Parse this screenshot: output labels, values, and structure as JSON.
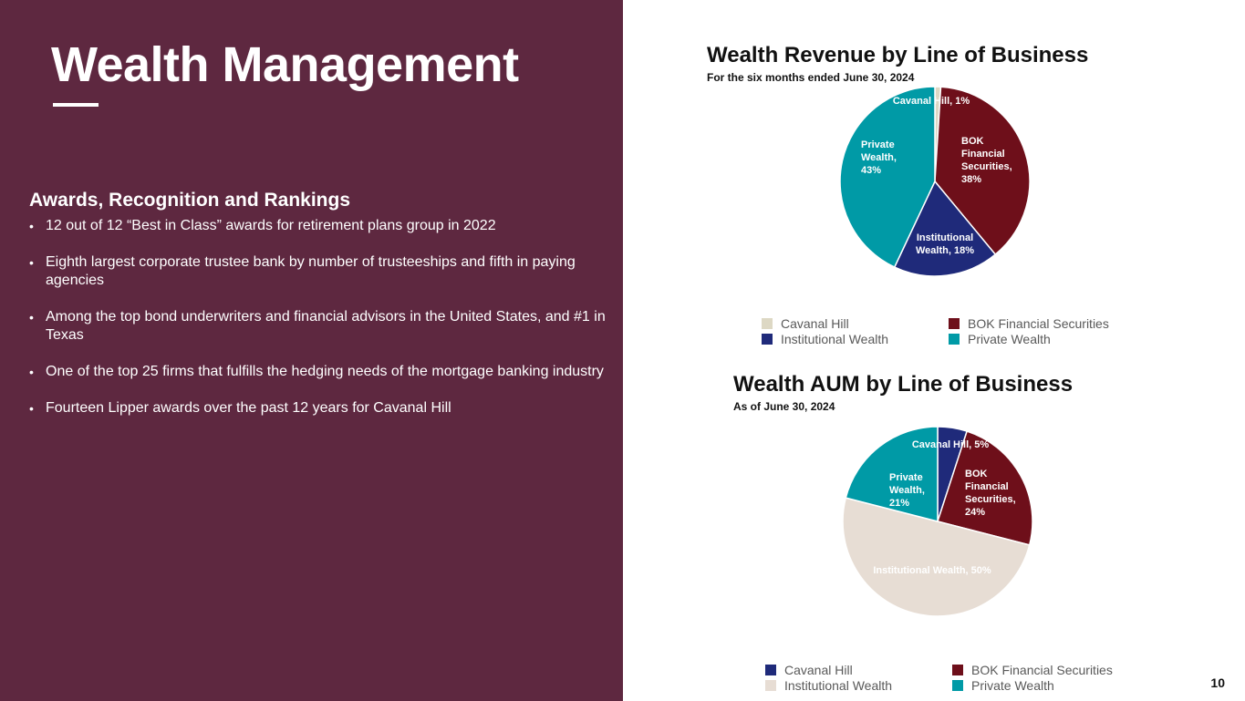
{
  "slide": {
    "title": "Wealth Management",
    "page_number": "10",
    "awards_heading": "Awards, Recognition and Rankings",
    "awards": [
      "12 out of 12 “Best in Class” awards for retirement plans group in 2022",
      "Eighth largest corporate trustee bank by number of trusteeships and fifth in paying agencies",
      "Among the top bond underwriters and financial advisors in the United States, and #1 in Texas",
      "One of the top 25 firms that fulfills the hedging needs of the mortgage banking industry",
      "Fourteen Lipper awards over the past 12 years for Cavanal Hill"
    ]
  },
  "colors": {
    "panel": "#5e2840",
    "cavanal_revenue": "#ddd8c4",
    "bok_financial": "#6e0f1a",
    "institutional_revenue": "#1f2a7a",
    "private_wealth": "#009aa6",
    "cavanal_aum": "#1f2a7a",
    "institutional_aum": "#e7ddd4"
  },
  "chart_data": [
    {
      "type": "pie",
      "title": "Wealth Revenue by Line of Business",
      "subtitle": "For the six months ended June 30, 2024",
      "slices": [
        {
          "name": "Cavanal Hill",
          "value": 1,
          "label": "Cavanal Hill, 1%",
          "color": "#ddd8c4"
        },
        {
          "name": "BOK Financial Securities",
          "value": 38,
          "label": "BOK Financial Securities, 38%",
          "color": "#6e0f1a"
        },
        {
          "name": "Institutional Wealth",
          "value": 18,
          "label": "Institutional Wealth, 18%",
          "color": "#1f2a7a"
        },
        {
          "name": "Private Wealth",
          "value": 43,
          "label": "Private Wealth, 43%",
          "color": "#009aa6"
        }
      ],
      "legend": [
        "Cavanal Hill",
        "BOK Financial Securities",
        "Institutional Wealth",
        "Private Wealth"
      ],
      "legend_position": "bottom"
    },
    {
      "type": "pie",
      "title": "Wealth AUM by Line of Business",
      "subtitle": "As of June 30, 2024",
      "slices": [
        {
          "name": "Cavanal Hill",
          "value": 5,
          "label": "Cavanal Hill, 5%",
          "color": "#1f2a7a"
        },
        {
          "name": "BOK Financial Securities",
          "value": 24,
          "label": "BOK Financial Securities, 24%",
          "color": "#6e0f1a"
        },
        {
          "name": "Institutional Wealth",
          "value": 50,
          "label": "Institutional Wealth, 50%",
          "color": "#e7ddd4"
        },
        {
          "name": "Private Wealth",
          "value": 21,
          "label": "Private Wealth, 21%",
          "color": "#009aa6"
        }
      ],
      "legend": [
        "Cavanal Hill",
        "BOK Financial Securities",
        "Institutional Wealth",
        "Private Wealth"
      ],
      "legend_position": "bottom"
    }
  ]
}
